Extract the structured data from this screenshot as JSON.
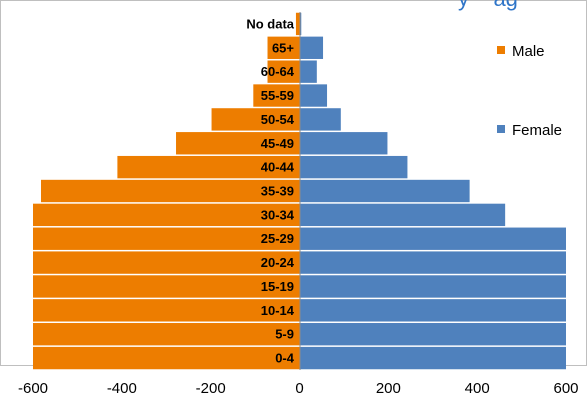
{
  "chart_data": {
    "type": "bar",
    "orientation": "horizontal",
    "title_fragment": "y    ag",
    "categories": [
      "0-4",
      "5-9",
      "10-14",
      "15-19",
      "20-24",
      "25-29",
      "30-34",
      "35-39",
      "40-44",
      "45-49",
      "50-54",
      "55-59",
      "60-64",
      "65+",
      "No data"
    ],
    "series": [
      {
        "name": "Male",
        "color": "#ed7d00",
        "values": [
          -600,
          -600,
          -600,
          -600,
          -600,
          -600,
          -600,
          -582,
          -410,
          -278,
          -198,
          -104,
          -72,
          -72,
          -8
        ]
      },
      {
        "name": "Female",
        "color": "#4f81bd",
        "values": [
          600,
          600,
          600,
          600,
          600,
          600,
          463,
          383,
          243,
          198,
          93,
          62,
          39,
          53,
          4
        ]
      }
    ],
    "xlim": [
      -600,
      600
    ],
    "xticks": [
      "-600",
      "-400",
      "-200",
      "0",
      "200",
      "400",
      "600"
    ],
    "grid": false,
    "legend_position": "right"
  }
}
